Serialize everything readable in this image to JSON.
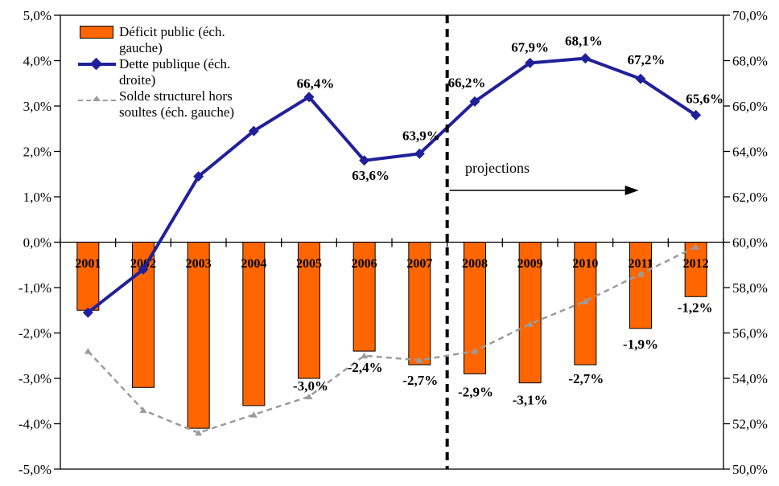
{
  "chart_data": {
    "type": "bar+line combo",
    "categories": [
      "2001",
      "2002",
      "2003",
      "2004",
      "2005",
      "2006",
      "2007",
      "2008",
      "2009",
      "2010",
      "2011",
      "2012"
    ],
    "series": [
      {
        "name": "Déficit public (éch. gauche)",
        "type": "bar",
        "axis": "left",
        "color": "#FF6600",
        "border_color": "#000000",
        "values": [
          -1.5,
          -3.2,
          -4.1,
          -3.6,
          -3.0,
          -2.4,
          -2.7,
          -2.9,
          -3.1,
          -2.7,
          -1.9,
          -1.2
        ],
        "labels": [
          "",
          "",
          "",
          "",
          "-3,0%",
          "-2,4%",
          "-2,7%",
          "-2,9%",
          "-3,1%",
          "-2,7%",
          "-1,9%",
          "-1,2%"
        ],
        "label_offsets": [
          [
            0,
            0
          ],
          [
            0,
            0
          ],
          [
            0,
            0
          ],
          [
            0,
            0
          ],
          [
            2,
            9
          ],
          [
            1,
            20
          ],
          [
            1,
            19
          ],
          [
            1,
            22
          ],
          [
            0,
            21
          ],
          [
            1,
            17
          ],
          [
            0,
            19
          ],
          [
            -1,
            13
          ]
        ]
      },
      {
        "name": "Dette publique (éch. droite)",
        "type": "line",
        "axis": "right",
        "color": "#20209A",
        "marker": "diamond",
        "values": [
          56.9,
          58.8,
          62.9,
          64.9,
          66.4,
          63.6,
          63.9,
          66.2,
          67.9,
          68.1,
          67.2,
          65.6
        ],
        "labels": [
          "",
          "",
          "",
          "",
          "66,4%",
          "63,6%",
          "63,9%",
          "66,2%",
          "67,9%",
          "68,1%",
          "67,2%",
          "65,6%"
        ],
        "label_offsets": [
          [
            0,
            0
          ],
          [
            0,
            0
          ],
          [
            0,
            0
          ],
          [
            0,
            0
          ],
          [
            8,
            -17
          ],
          [
            8,
            18
          ],
          [
            2,
            -23
          ],
          [
            -10,
            -24
          ],
          [
            0,
            -20
          ],
          [
            -2,
            -22
          ],
          [
            7,
            -24
          ],
          [
            11,
            -21
          ]
        ]
      },
      {
        "name": "Solde structurel hors soultes (éch. gauche)",
        "type": "dashed-line",
        "axis": "left",
        "color": "#9C9C9C",
        "marker": "triangle",
        "values": [
          -2.4,
          -3.7,
          -4.2,
          -3.8,
          -3.4,
          -2.5,
          -2.6,
          -2.4,
          -1.8,
          -1.3,
          -0.7,
          -0.1
        ]
      }
    ],
    "left_axis": {
      "min": -5,
      "max": 5,
      "step": 1,
      "ticks": [
        "5,0%",
        "4,0%",
        "3,0%",
        "2,0%",
        "1,0%",
        "0,0%",
        "-1,0%",
        "-2,0%",
        "-3,0%",
        "-4,0%",
        "-5,0%"
      ]
    },
    "right_axis": {
      "min": 50,
      "max": 70,
      "step": 2,
      "ticks": [
        "70,0%",
        "68,0%",
        "66,0%",
        "64,0%",
        "62,0%",
        "60,0%",
        "58,0%",
        "56,0%",
        "54,0%",
        "52,0%",
        "50,0%"
      ]
    },
    "divider": {
      "after_category": "2007",
      "color": "#000000"
    },
    "annotations": {
      "projections": "projections"
    },
    "grid": "off",
    "legend_position": "top-left-inside"
  }
}
